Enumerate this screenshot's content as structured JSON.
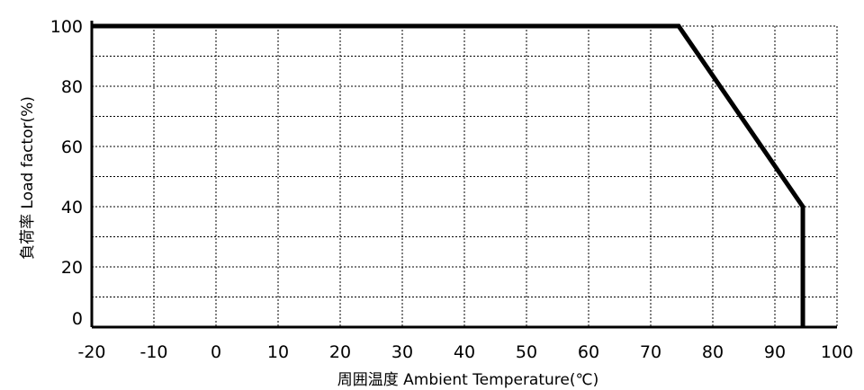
{
  "chart_data": {
    "type": "line",
    "title": "",
    "xlabel": "周囲温度 Ambient Temperature(℃)",
    "ylabel": "負荷率 Load factor(%)",
    "xlim": [
      -20,
      100
    ],
    "ylim": [
      0,
      100
    ],
    "x_ticks": [
      "-20",
      "-10",
      "0",
      "10",
      "20",
      "30",
      "40",
      "50",
      "60",
      "70",
      "80",
      "90",
      "100"
    ],
    "y_ticks": [
      "0",
      "20",
      "40",
      "60",
      "80",
      "100"
    ],
    "y_minor_grid_step": 10,
    "x_grid_step": 10,
    "grid": true,
    "series": [
      {
        "x": [
          -20,
          74.5,
          94.5,
          94.5
        ],
        "y": [
          100,
          100,
          40,
          0
        ]
      }
    ]
  }
}
